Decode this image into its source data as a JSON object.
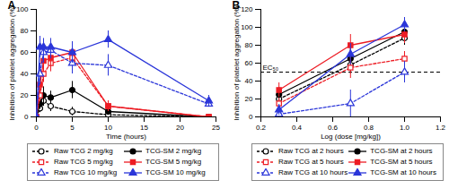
{
  "chart_data": [
    {
      "type": "line",
      "title": "A",
      "x_label": "Time (hours)",
      "y_label": "Inhibition of platelet aggregation (%)",
      "x": [
        0,
        0.5,
        1,
        2,
        5,
        10,
        24
      ],
      "xlim": [
        0,
        25
      ],
      "xticks": [
        0,
        5,
        10,
        15,
        20,
        25
      ],
      "ylim": [
        0,
        100
      ],
      "yticks": [
        0,
        20,
        40,
        60,
        80,
        100
      ],
      "series": [
        {
          "name": "Raw TCG 2 mg/kg",
          "color": "#000000",
          "marker": "open-circle",
          "line_style": "dashed",
          "values": [
            0,
            8,
            15,
            10,
            5,
            2,
            0
          ],
          "errors": [
            0,
            4,
            5,
            5,
            4,
            3,
            0
          ]
        },
        {
          "name": "TCG-SM 2 mg/kg",
          "color": "#000000",
          "marker": "circle",
          "line_style": "solid",
          "values": [
            0,
            12,
            20,
            18,
            25,
            5,
            0
          ],
          "errors": [
            0,
            5,
            8,
            6,
            8,
            3,
            0
          ]
        },
        {
          "name": "Raw TCG 5 mg/kg",
          "color": "#ed1c24",
          "marker": "open-square",
          "line_style": "dashed",
          "values": [
            0,
            20,
            40,
            50,
            55,
            10,
            0
          ],
          "errors": [
            0,
            6,
            8,
            8,
            10,
            4,
            0
          ]
        },
        {
          "name": "TCG-SM 5 mg/kg",
          "color": "#ed1c24",
          "marker": "square",
          "line_style": "solid",
          "values": [
            0,
            30,
            52,
            55,
            60,
            10,
            0
          ],
          "errors": [
            0,
            8,
            10,
            10,
            10,
            5,
            0
          ]
        },
        {
          "name": "Raw TCG 10 mg/kg",
          "color": "#2b36d9",
          "marker": "open-triangle",
          "line_style": "dashed",
          "values": [
            0,
            40,
            60,
            62,
            50,
            48,
            12
          ],
          "errors": [
            0,
            10,
            10,
            8,
            10,
            10,
            3
          ]
        },
        {
          "name": "TCG-SM 10 mg/kg",
          "color": "#2b36d9",
          "marker": "triangle",
          "line_style": "solid",
          "values": [
            0,
            65,
            65,
            65,
            60,
            72,
            15
          ],
          "errors": [
            0,
            10,
            8,
            8,
            10,
            8,
            5
          ]
        }
      ]
    },
    {
      "type": "line",
      "title": "B",
      "x_label": "Log (dose [mg/kg])",
      "y_label": "Inhibition of platelet aggregation (%)",
      "x": [
        0.301,
        0.699,
        1.0
      ],
      "xlim": [
        0.2,
        1.2
      ],
      "xticks": [
        0.2,
        0.4,
        0.6,
        0.8,
        {
          "value": 1,
          "label": "1.0"
        },
        1.2
      ],
      "ylim": [
        0,
        120
      ],
      "yticks": [
        0,
        20,
        40,
        60,
        80,
        100,
        120
      ],
      "reference_line": {
        "y": 50,
        "label": "EC₅₀"
      },
      "series": [
        {
          "name": "Raw TCG at 2 hours",
          "color": "#000000",
          "marker": "open-circle",
          "line_style": "dashed",
          "values": [
            20,
            58,
            88
          ],
          "errors": [
            8,
            10,
            8
          ]
        },
        {
          "name": "TCG-SM at 2 hours",
          "color": "#000000",
          "marker": "circle",
          "line_style": "solid",
          "values": [
            25,
            65,
            95
          ],
          "errors": [
            8,
            12,
            10
          ]
        },
        {
          "name": "Raw TCG at 5 hours",
          "color": "#ed1c24",
          "marker": "open-square",
          "line_style": "dashed",
          "values": [
            15,
            55,
            65
          ],
          "errors": [
            6,
            12,
            8
          ]
        },
        {
          "name": "TCG-SM at 5 hours",
          "color": "#ed1c24",
          "marker": "square",
          "line_style": "solid",
          "values": [
            30,
            80,
            92
          ],
          "errors": [
            8,
            12,
            10
          ]
        },
        {
          "name": "Raw TCG at 10 hours",
          "color": "#2b36d9",
          "marker": "open-triangle",
          "line_style": "dashed",
          "values": [
            3,
            15,
            50
          ],
          "errors": [
            5,
            15,
            12
          ]
        },
        {
          "name": "TCG-SM at 10 hours",
          "color": "#2b36d9",
          "marker": "triangle",
          "line_style": "solid",
          "values": [
            8,
            70,
            103
          ],
          "errors": [
            6,
            12,
            8
          ]
        }
      ]
    }
  ]
}
